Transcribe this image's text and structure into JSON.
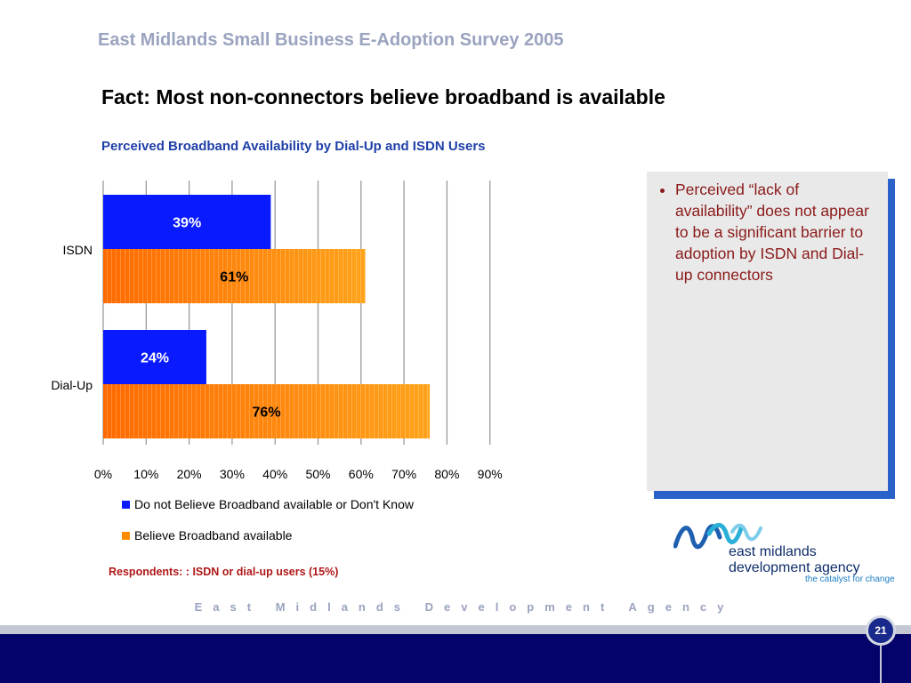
{
  "slide": {
    "survey_title": "East Midlands Small Business E-Adoption Survey 2005",
    "headline": "Fact: Most non-connectors believe broadband is available",
    "respondents": "Respondents: : ISDN or dial-up users (15%)",
    "footer_agency": "East Midlands Development Agency",
    "page_number": "21"
  },
  "callout": {
    "bullet": "Perceived “lack of availability” does not appear to be a significant barrier to adoption by ISDN and Dial-up connectors"
  },
  "logo": {
    "line1": "east midlands",
    "line2": "development agency",
    "tagline": "the catalyst for change"
  },
  "colors": {
    "series_blue": "#0a1aff",
    "series_orange_start": "#ff6a00",
    "series_orange_end": "#ffa31a",
    "footer_band": "#03036b"
  },
  "chart_data": {
    "type": "bar",
    "orientation": "horizontal",
    "title": "Perceived Broadband Availability by Dial-Up and ISDN Users",
    "categories": [
      "ISDN",
      "Dial-Up"
    ],
    "series": [
      {
        "name": "Do not Believe Broadband available or Don't Know",
        "values": [
          39,
          24
        ],
        "labels": [
          "39%",
          "24%"
        ],
        "color": "#0a1aff"
      },
      {
        "name": "Believe Broadband available",
        "values": [
          61,
          76
        ],
        "labels": [
          "61%",
          "76%"
        ],
        "color": "#ff8c00"
      }
    ],
    "xlim": [
      0,
      90
    ],
    "xticks": [
      "0%",
      "10%",
      "20%",
      "30%",
      "40%",
      "50%",
      "60%",
      "70%",
      "80%",
      "90%"
    ],
    "grid": true,
    "legend": "bottom"
  }
}
